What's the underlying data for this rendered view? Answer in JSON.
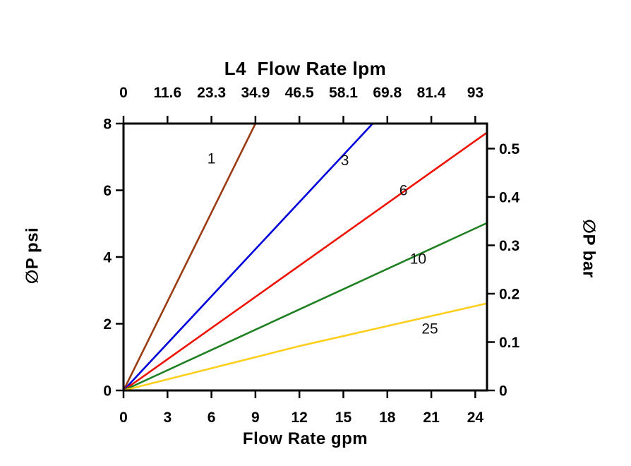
{
  "chart_data": {
    "type": "line",
    "top_axis_title": "L4  Flow Rate lpm",
    "bottom_axis_title": "Flow Rate gpm",
    "left_axis_title": "∅P psi",
    "right_axis_title": "∅P bar",
    "xlim": [
      0,
      24.8
    ],
    "ylim": [
      0,
      8
    ],
    "axis_color": "#000000",
    "background": "#ffffff",
    "x_ticks_bottom": {
      "values": [
        0,
        3,
        6,
        9,
        12,
        15,
        18,
        21,
        24
      ],
      "labels": [
        "0",
        "3",
        "6",
        "9",
        "12",
        "15",
        "18",
        "21",
        "24"
      ]
    },
    "x_ticks_top": {
      "values": [
        0,
        3,
        6,
        9,
        12,
        15,
        18,
        21,
        24
      ],
      "labels": [
        "0",
        "11.6",
        "23.3",
        "34.9",
        "46.5",
        "58.1",
        "69.8",
        "81.4",
        "93"
      ]
    },
    "y_ticks_left": {
      "values": [
        0,
        2,
        4,
        6,
        8
      ],
      "labels": [
        "0",
        "2",
        "4",
        "6",
        "8"
      ]
    },
    "y_ticks_right": {
      "values": [
        0,
        1.45,
        2.9,
        4.35,
        5.8,
        7.25
      ],
      "labels": [
        "0",
        "0.1",
        "0.2",
        "0.3",
        "0.4",
        "0.5"
      ]
    },
    "series": [
      {
        "name": "1",
        "label": "1",
        "color": "#9A3B12",
        "points": [
          [
            0,
            0
          ],
          [
            9.0,
            8.0
          ]
        ],
        "label_x": 6.0,
        "label_y": 6.95
      },
      {
        "name": "3",
        "label": "3",
        "color": "#0000DD",
        "points": [
          [
            0,
            0
          ],
          [
            17.0,
            8.0
          ]
        ],
        "label_x": 15.1,
        "label_y": 6.9
      },
      {
        "name": "6",
        "label": "6",
        "color": "#EE1100",
        "points": [
          [
            0,
            0
          ],
          [
            24.7,
            7.7
          ]
        ],
        "label_x": 19.1,
        "label_y": 6.0
      },
      {
        "name": "10",
        "label": "10",
        "color": "#1E8020",
        "points": [
          [
            0,
            0
          ],
          [
            24.7,
            5.0
          ]
        ],
        "label_x": 20.1,
        "label_y": 3.95
      },
      {
        "name": "25",
        "label": "25",
        "color": "#FFCE1B",
        "points": [
          [
            0,
            0
          ],
          [
            12,
            1.33
          ],
          [
            24.7,
            2.6
          ]
        ],
        "label_x": 20.9,
        "label_y": 1.85
      }
    ]
  }
}
